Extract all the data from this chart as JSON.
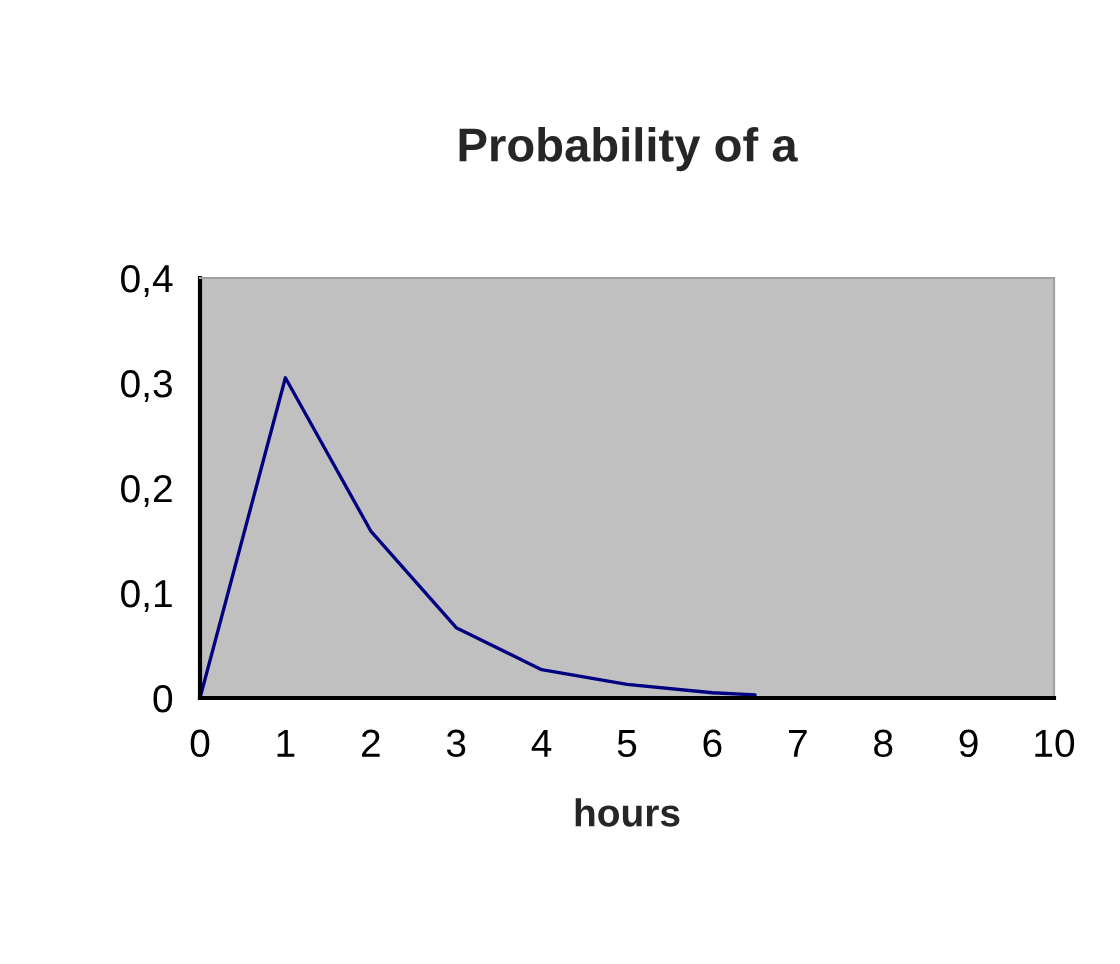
{
  "chart_data": {
    "type": "line",
    "title": "Probability of a",
    "xlabel": "hours",
    "x": [
      0,
      1,
      2,
      3,
      4,
      5,
      6,
      6.5
    ],
    "series": [
      {
        "color": "#000080",
        "values": [
          0,
          0.305,
          0.159,
          0.067,
          0.027,
          0.013,
          0.005,
          0.003
        ]
      }
    ],
    "xlim": [
      0,
      10
    ],
    "xticks": [
      0,
      1,
      2,
      3,
      4,
      5,
      6,
      7,
      8,
      9,
      10
    ],
    "ylim": [
      0,
      0.4
    ],
    "yticks": [
      {
        "value": 0,
        "label": "0"
      },
      {
        "value": 0.1,
        "label": "0,1"
      },
      {
        "value": 0.2,
        "label": "0,2"
      },
      {
        "value": 0.3,
        "label": "0,3"
      },
      {
        "value": 0.4,
        "label": "0,4"
      }
    ],
    "grid": false,
    "legend": false,
    "marker": "none",
    "line_style": "solid"
  }
}
